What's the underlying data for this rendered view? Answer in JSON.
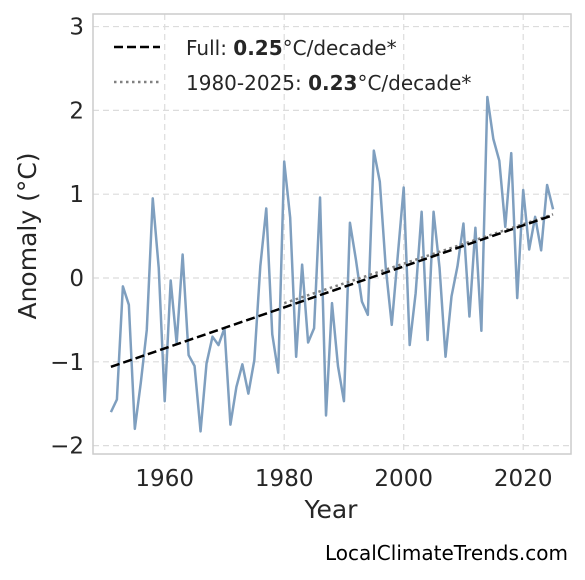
{
  "chart_data": {
    "type": "line",
    "title": "",
    "xlabel": "Year",
    "ylabel": "Anomaly (°C)",
    "xlim": [
      1948,
      2028
    ],
    "ylim": [
      -2.1,
      3.15
    ],
    "xticks": [
      1960,
      1980,
      2000,
      2020
    ],
    "xtick_labels": [
      "1960",
      "1980",
      "2000",
      "2020"
    ],
    "yticks": [
      -2,
      -1,
      0,
      1,
      2,
      3
    ],
    "ytick_labels": [
      "−2",
      "−1",
      "0",
      "1",
      "2",
      "3"
    ],
    "grid": true,
    "legend_position": "top-left",
    "series": [
      {
        "name": "",
        "color": "#7f9fbf",
        "x": [
          1951,
          1952,
          1953,
          1954,
          1955,
          1956,
          1957,
          1958,
          1959,
          1960,
          1961,
          1962,
          1963,
          1964,
          1965,
          1966,
          1967,
          1968,
          1969,
          1970,
          1971,
          1972,
          1973,
          1974,
          1975,
          1976,
          1977,
          1978,
          1979,
          1980,
          1981,
          1982,
          1983,
          1984,
          1985,
          1986,
          1987,
          1988,
          1989,
          1990,
          1991,
          1992,
          1993,
          1994,
          1995,
          1996,
          1997,
          1998,
          1999,
          2000,
          2001,
          2002,
          2003,
          2004,
          2005,
          2006,
          2007,
          2008,
          2009,
          2010,
          2011,
          2012,
          2013,
          2014,
          2015,
          2016,
          2017,
          2018,
          2019,
          2020,
          2021,
          2022,
          2023,
          2024,
          2025
        ],
        "y": [
          -1.6,
          -1.45,
          -0.1,
          -0.32,
          -1.8,
          -1.25,
          -0.62,
          0.95,
          0.12,
          -1.47,
          -0.03,
          -0.78,
          0.28,
          -0.92,
          -1.05,
          -1.83,
          -1.02,
          -0.7,
          -0.8,
          -0.6,
          -1.75,
          -1.3,
          -1.03,
          -1.38,
          -0.98,
          0.14,
          0.83,
          -0.67,
          -1.13,
          1.39,
          0.72,
          -0.94,
          0.16,
          -0.77,
          -0.6,
          0.96,
          -1.64,
          -0.3,
          -1.05,
          -1.47,
          0.66,
          0.22,
          -0.28,
          -0.44,
          1.52,
          1.15,
          0.12,
          -0.56,
          0.26,
          1.08,
          -0.8,
          -0.18,
          0.79,
          -0.74,
          0.79,
          0.12,
          -0.94,
          -0.22,
          0.14,
          0.65,
          -0.46,
          0.6,
          -0.63,
          2.16,
          1.66,
          1.4,
          0.61,
          1.49,
          -0.24,
          1.05,
          0.34,
          0.73,
          0.33,
          1.11,
          0.82
        ]
      },
      {
        "name": "Full",
        "style": "dashed",
        "color": "#000000",
        "x": [
          1951,
          2025
        ],
        "y": [
          -1.06,
          0.75
        ]
      },
      {
        "name": "1980-2025",
        "style": "dotted",
        "color": "#808080",
        "x": [
          1980,
          2025
        ],
        "y": [
          -0.3,
          0.76
        ]
      }
    ],
    "legend": [
      {
        "prefix": "Full: ",
        "value": "0.25",
        "suffix": "°C/decade*"
      },
      {
        "prefix": "1980-2025: ",
        "value": "0.23",
        "suffix": "°C/decade*"
      }
    ],
    "credit": "LocalClimateTrends.com"
  }
}
